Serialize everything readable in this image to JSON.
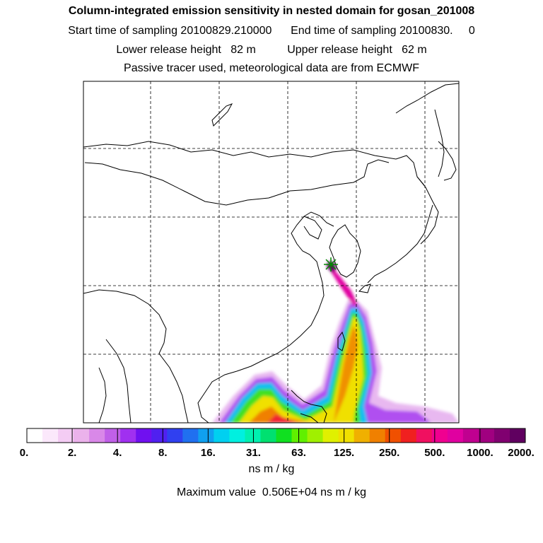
{
  "header": {
    "title": "Column-integrated emission sensitivity in nested domain for gosan_201008",
    "sampling": "Start time of sampling 20100829.210000      End time of sampling 20100830.     0",
    "release": "Lower release height   82 m          Upper release height   62 m",
    "info": "Passive tracer used, meteorological data are from ECMWF"
  },
  "colorbar": {
    "tick_labels": [
      "0.",
      "2.",
      "4.",
      "8.",
      "16.",
      "31.",
      "63.",
      "125.",
      "250.",
      "500.",
      "1000.",
      "2000."
    ],
    "colors": [
      "#ffffff",
      "#fbe8fb",
      "#f4ccf4",
      "#ebb2eb",
      "#d988e8",
      "#c060e8",
      "#a030f0",
      "#7010f0",
      "#5020f0",
      "#3040f0",
      "#2070f0",
      "#10a0f0",
      "#00d0f0",
      "#00f0e0",
      "#00f0b0",
      "#00e070",
      "#10e020",
      "#60f000",
      "#a0f000",
      "#e0f000",
      "#f0e000",
      "#f0b000",
      "#f08000",
      "#f05000",
      "#f02020",
      "#f01060",
      "#f00090",
      "#e000a0",
      "#c00090",
      "#a00080",
      "#800070",
      "#600060"
    ],
    "units": "ns m / kg",
    "max_label": "Maximum value  0.506E+04 ns m / kg"
  },
  "map": {
    "grid": "dashed",
    "receptor_marker": "star",
    "receptor_name": "gosan"
  }
}
